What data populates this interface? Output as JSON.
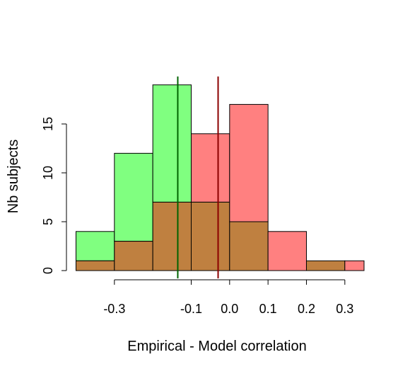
{
  "chart_data": {
    "type": "bar",
    "xlabel": "Empirical - Model correlation",
    "ylabel": "Nb subjects",
    "xlim": [
      -0.4,
      0.35
    ],
    "ylim": [
      0,
      19
    ],
    "x_ticks": [
      -0.3,
      -0.1,
      0.0,
      0.1,
      0.2,
      0.3
    ],
    "x_tick_labels": [
      "-0.3",
      "-0.1",
      "0.0",
      "0.1",
      "0.2",
      "0.3"
    ],
    "y_ticks": [
      0,
      5,
      10,
      15
    ],
    "y_tick_labels": [
      "0",
      "5",
      "10",
      "15"
    ],
    "grid": false,
    "series": [
      {
        "color": "#80ff80",
        "bins": [
          {
            "start": -0.4,
            "end": -0.3,
            "count": 4
          },
          {
            "start": -0.3,
            "end": -0.2,
            "count": 12
          },
          {
            "start": -0.2,
            "end": -0.1,
            "count": 19
          },
          {
            "start": -0.1,
            "end": 0.0,
            "count": 7
          },
          {
            "start": 0.0,
            "end": 0.1,
            "count": 5
          },
          {
            "start": 0.1,
            "end": 0.2,
            "count": 0
          },
          {
            "start": 0.2,
            "end": 0.3,
            "count": 1
          },
          {
            "start": 0.3,
            "end": 0.4,
            "count": 0
          }
        ],
        "mean_line": -0.135,
        "mean_line_color": "#006400"
      },
      {
        "color": "#ff8080",
        "bins": [
          {
            "start": -0.4,
            "end": -0.3,
            "count": 1
          },
          {
            "start": -0.3,
            "end": -0.2,
            "count": 3
          },
          {
            "start": -0.2,
            "end": -0.1,
            "count": 7
          },
          {
            "start": -0.1,
            "end": 0.0,
            "count": 14
          },
          {
            "start": 0.0,
            "end": 0.1,
            "count": 17
          },
          {
            "start": 0.1,
            "end": 0.2,
            "count": 4
          },
          {
            "start": 0.2,
            "end": 0.3,
            "count": 1
          },
          {
            "start": 0.3,
            "end": 0.4,
            "count": 1
          }
        ],
        "mean_line": -0.03,
        "mean_line_color": "#8b0000"
      }
    ],
    "overlap_color": "#bf8040"
  }
}
